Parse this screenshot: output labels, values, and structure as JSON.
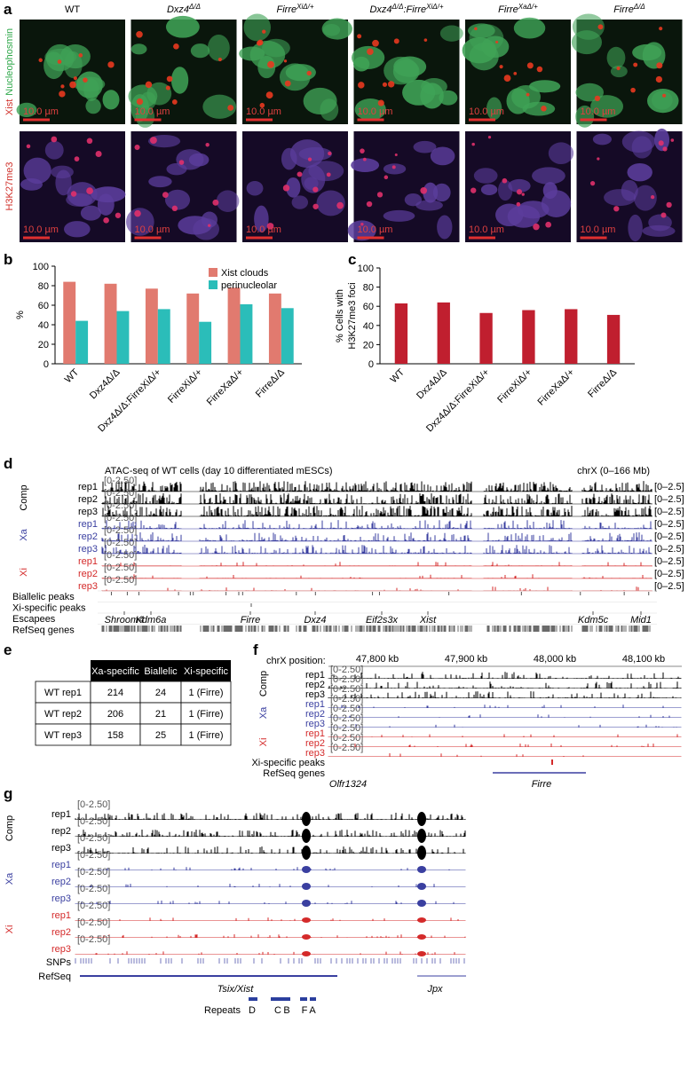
{
  "panel_a": {
    "label": "a",
    "columns": [
      [
        "WT"
      ],
      [
        "Dxz4",
        "Δ/Δ"
      ],
      [
        "Firre",
        "XiΔ/+"
      ],
      [
        "Dxz4",
        "Δ/Δ",
        ":Firre",
        "XiΔ/+"
      ],
      [
        "Firre",
        "XaΔ/+"
      ],
      [
        "Firre",
        "Δ/Δ"
      ]
    ],
    "row_labels": [
      [
        "Xist",
        "Nucleophosmin"
      ],
      [
        "H3K27me3"
      ]
    ],
    "scale_bar": "10.0 µm"
  },
  "chart_data": [
    {
      "type": "bar",
      "label": "b",
      "ylabel": "%",
      "categories": [
        "WT",
        "Dxz4Δ/Δ",
        "Dxz4Δ/Δ:FirreXiΔ/+",
        "FirreXiΔ/+",
        "FirreXaΔ/+",
        "FirreΔ/Δ"
      ],
      "series": [
        {
          "name": "Xist clouds",
          "color": "#e17a6f",
          "values": [
            84,
            82,
            77,
            72,
            78,
            72
          ]
        },
        {
          "name": "perinucleolar",
          "color": "#2bbdb9",
          "values": [
            44,
            54,
            56,
            43,
            61,
            57
          ]
        }
      ],
      "ylim": [
        0,
        100
      ],
      "yticks": [
        0,
        20,
        40,
        60,
        80,
        100
      ],
      "legend": "upper right"
    },
    {
      "type": "bar",
      "label": "c",
      "ylabel": [
        "% Cells with",
        "H3K27me3 foci"
      ],
      "categories": [
        "WT",
        "Dxz4Δ/Δ",
        "Dxz4Δ/Δ:FirreXiΔ/+",
        "FirreXiΔ/+",
        "FirreXaΔ/+",
        "FirreΔ/Δ"
      ],
      "series": [
        {
          "color": "#c01f2f",
          "values": [
            63,
            64,
            53,
            56,
            57,
            51
          ]
        }
      ],
      "ylim": [
        0,
        100
      ],
      "yticks": [
        0,
        20,
        40,
        60,
        80,
        100
      ]
    }
  ],
  "panel_d": {
    "label": "d",
    "title": "ATAC-seq of WT cells (day 10 differentiated mESCs)",
    "region": "chrX (0–166 Mb)",
    "groups": [
      {
        "name": "Comp",
        "color": "#000000",
        "reps": [
          "rep1",
          "rep2",
          "rep3"
        ]
      },
      {
        "name": "Xa",
        "color": "#3a3fa0",
        "reps": [
          "rep1",
          "rep2",
          "rep3"
        ]
      },
      {
        "name": "Xi",
        "color": "#d42a2a",
        "reps": [
          "rep1",
          "rep2",
          "rep3"
        ]
      }
    ],
    "range": "[0–2.5]",
    "small_range": "[0-2.50]",
    "tracks": [
      "Biallelic peaks",
      "Xi-specific peaks",
      "Escapees",
      "RefSeq genes"
    ],
    "genes": [
      "Shroom4",
      "Kdm6a",
      "Firre",
      "Dxz4",
      "Eif2s3x",
      "Xist",
      "Kdm5c",
      "Mid1"
    ]
  },
  "panel_e": {
    "label": "e",
    "headers": [
      "Xa-specific",
      "Biallelic",
      "Xi-specific"
    ],
    "rows": [
      [
        "WT rep1",
        "214",
        "24",
        "1 (Firre)"
      ],
      [
        "WT rep2",
        "206",
        "21",
        "1 (Firre)"
      ],
      [
        "WT rep3",
        "158",
        "25",
        "1 (Firre)"
      ]
    ]
  },
  "panel_f": {
    "label": "f",
    "axis_label": "chrX position:",
    "positions": [
      "47,800 kb",
      "47,900 kb",
      "48,000 kb",
      "48,100 kb"
    ],
    "tracks": [
      "Xi-specific peaks",
      "RefSeq genes"
    ],
    "genes": [
      "Olfr1324",
      "Firre"
    ]
  },
  "panel_g": {
    "label": "g",
    "tracks": [
      "SNPs",
      "RefSeq"
    ],
    "genes": [
      "Tsix/Xist",
      "Jpx"
    ],
    "repeats_label": "Repeats",
    "repeats": [
      "D",
      "C",
      "B",
      "F",
      "A"
    ]
  }
}
